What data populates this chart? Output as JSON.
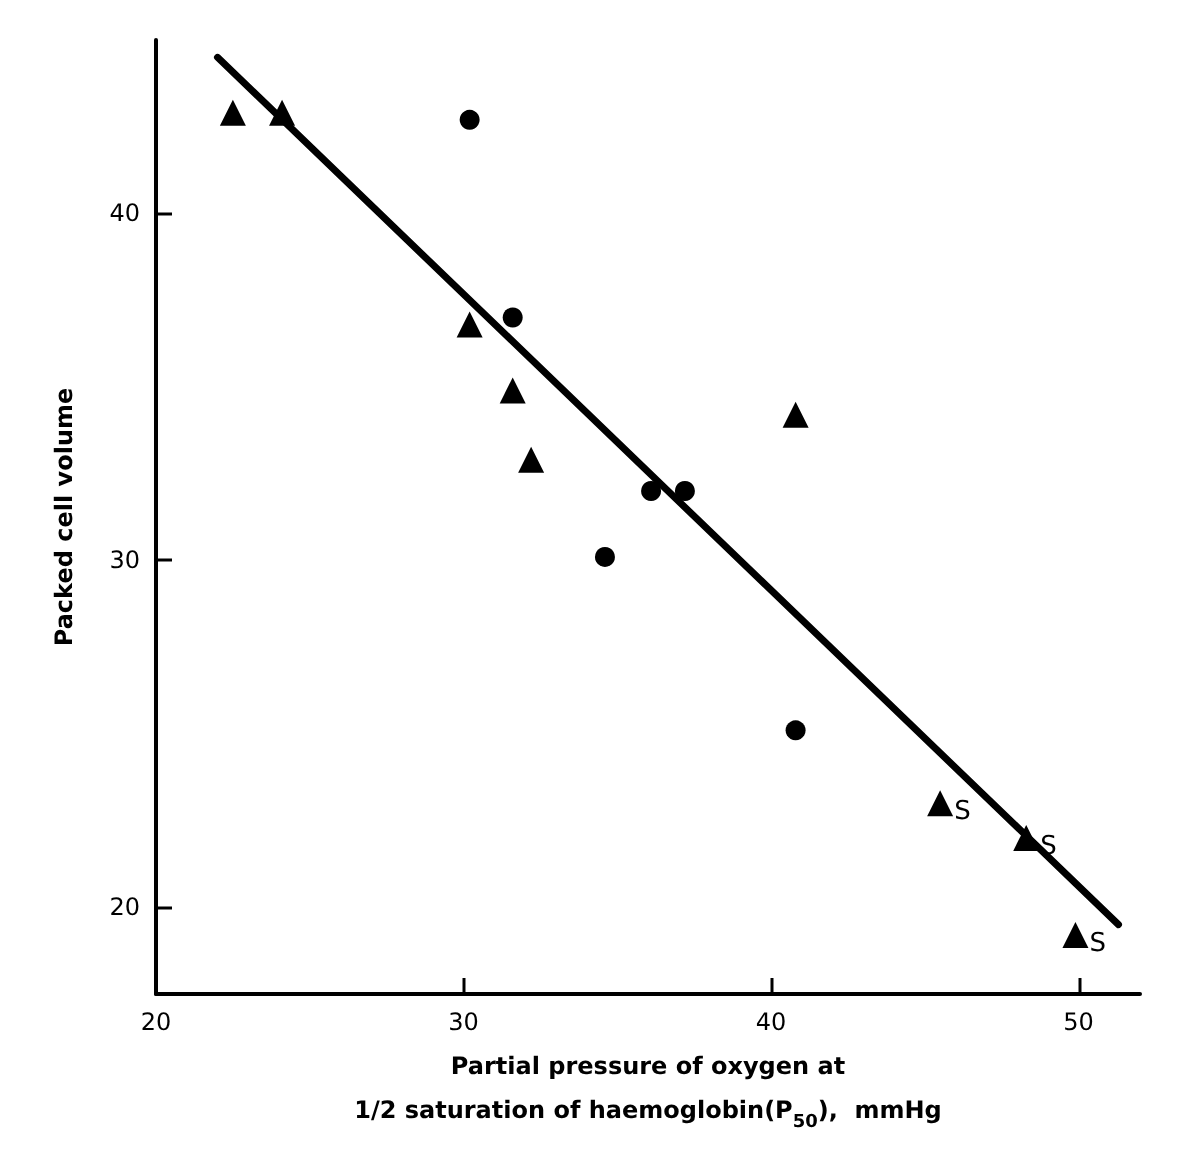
{
  "chart_data": {
    "type": "scatter",
    "xlabel": "Partial pressure of oxygen at\n1/2 saturation of haemoglobin(P$_{50}$),  mmHg",
    "ylabel": "Packed cell volume",
    "xlim": [
      20,
      52
    ],
    "ylim": [
      17.5,
      45
    ],
    "xticks": [
      20,
      30,
      40,
      50
    ],
    "yticks": [
      20,
      30,
      40
    ],
    "grid": false,
    "series": [
      {
        "color": "#000000",
        "marker": "triangle",
        "x": [
          22.5,
          24.1,
          30.2,
          31.6,
          32.2,
          40.8,
          45.5,
          48.3,
          49.9
        ],
        "values": [
          42.9,
          42.9,
          36.8,
          34.9,
          32.9,
          34.2,
          23.0,
          22.0,
          19.2
        ]
      },
      {
        "color": "#000000",
        "marker": "circle",
        "x": [
          30.2,
          31.6,
          36.1,
          37.2,
          34.6,
          40.8
        ],
        "values": [
          42.7,
          37.0,
          32.0,
          32.0,
          30.1,
          25.1
        ]
      },
      {
        "type": "line",
        "color": "#000000",
        "marker": "none",
        "line_style": "solid",
        "x": [
          22.0,
          51.3
        ],
        "values": [
          44.5,
          19.5
        ]
      }
    ],
    "annotations": [
      {
        "text": "S",
        "x": 45.5,
        "y": 23.0
      },
      {
        "text": "S",
        "x": 48.3,
        "y": 22.0
      },
      {
        "text": "S",
        "x": 49.9,
        "y": 19.2
      }
    ]
  }
}
